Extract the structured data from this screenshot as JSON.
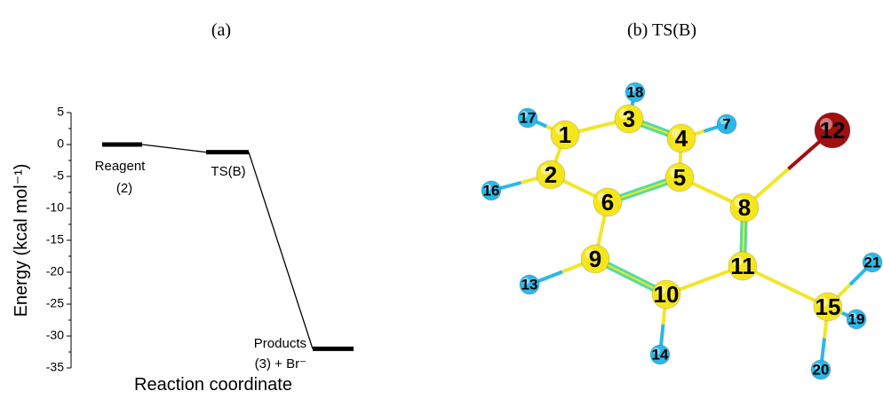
{
  "panel_titles": [
    "(a)",
    "(b) TS(B)"
  ],
  "chart_data": {
    "type": "energy-profile",
    "y_label": "Energy (kcal mol⁻¹)",
    "x_label": "Reaction coordinate",
    "categories": [
      "Reagent",
      "TS(B)",
      "Products"
    ],
    "sublabels": [
      "(2)",
      null,
      "(3) + Br⁻"
    ],
    "values": [
      0,
      -1.2,
      -32
    ],
    "color": "#000000",
    "ylim": [
      -35,
      5
    ],
    "yticks": [
      -35,
      -30,
      -25,
      -20,
      -15,
      -10,
      -5,
      0,
      5
    ]
  },
  "molecule": {
    "atoms": [
      {
        "label": "1",
        "color": "#f5e61c"
      },
      {
        "label": "2",
        "color": "#f5e61c"
      },
      {
        "label": "3",
        "color": "#f5e61c"
      },
      {
        "label": "4",
        "color": "#f5e61c"
      },
      {
        "label": "5",
        "color": "#f5e61c"
      },
      {
        "label": "6",
        "color": "#f5e61c"
      },
      {
        "label": "7",
        "color": "#2bb8e8"
      },
      {
        "label": "8",
        "color": "#f5e61c"
      },
      {
        "label": "9",
        "color": "#f5e61c"
      },
      {
        "label": "10",
        "color": "#f5e61c"
      },
      {
        "label": "11",
        "color": "#f5e61c"
      },
      {
        "label": "12",
        "color": "#a01010"
      },
      {
        "label": "13",
        "color": "#2bb8e8"
      },
      {
        "label": "14",
        "color": "#2bb8e8"
      },
      {
        "label": "15",
        "color": "#f5e61c"
      },
      {
        "label": "16",
        "color": "#2bb8e8"
      },
      {
        "label": "17",
        "color": "#2bb8e8"
      },
      {
        "label": "18",
        "color": "#2bb8e8"
      },
      {
        "label": "19",
        "color": "#2bb8e8"
      },
      {
        "label": "20",
        "color": "#2bb8e8"
      },
      {
        "label": "21",
        "color": "#2bb8e8"
      }
    ]
  }
}
